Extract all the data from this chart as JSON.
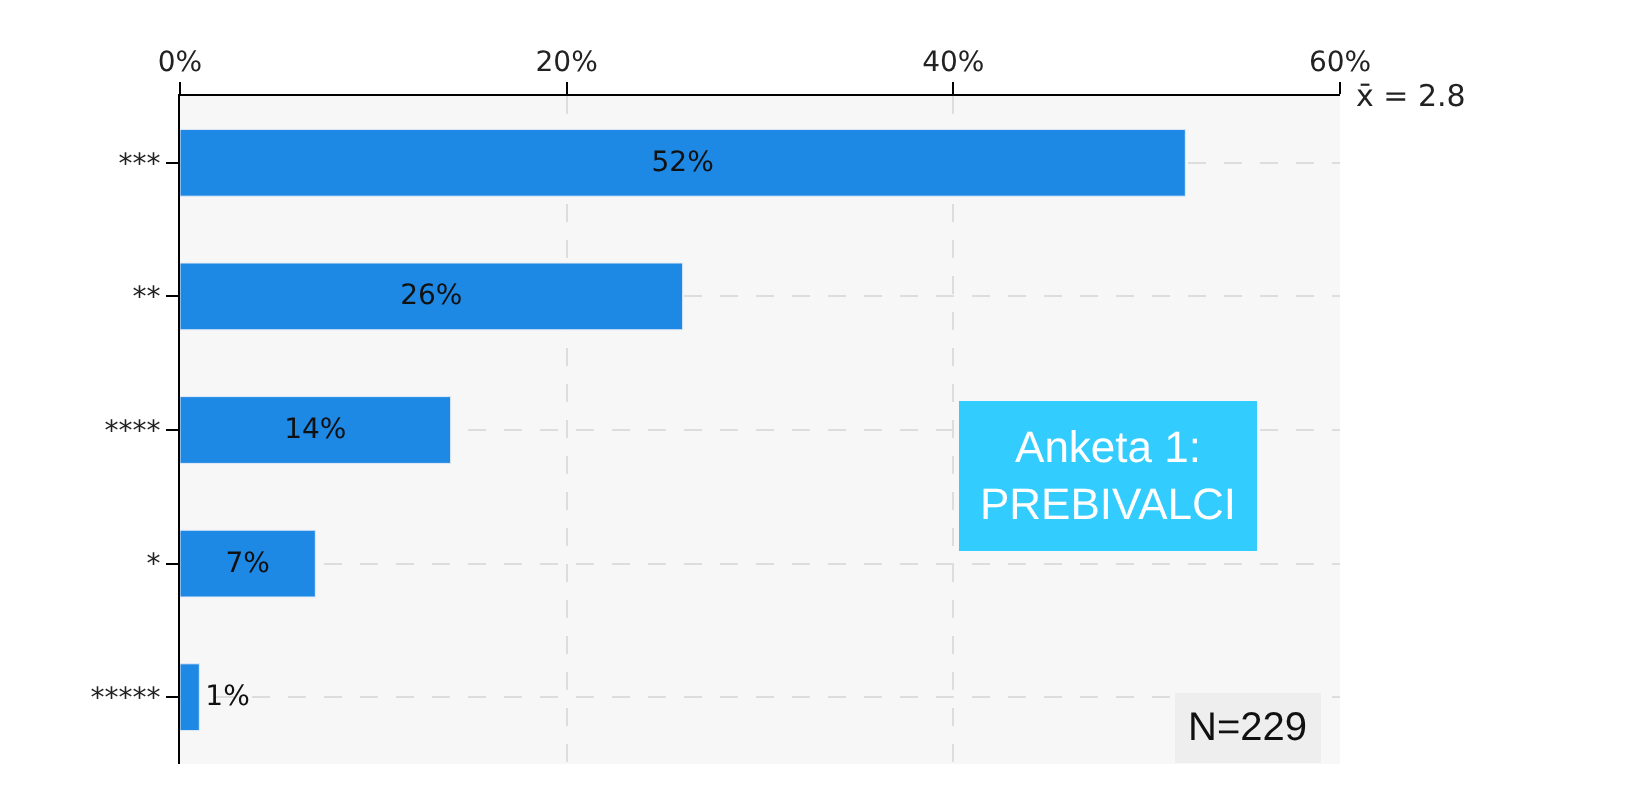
{
  "chart_data": {
    "type": "bar",
    "orientation": "horizontal",
    "categories": [
      "***",
      "**",
      "****",
      "*",
      "*****"
    ],
    "values": [
      52,
      26,
      14,
      7,
      1
    ],
    "value_labels": [
      "52%",
      "26%",
      "14%",
      "7%",
      "1%"
    ],
    "color": "#1e88e5",
    "xlim": [
      0,
      60
    ],
    "xticks": [
      {
        "value": 0,
        "label": "0%"
      },
      {
        "value": 20,
        "label": "20%"
      },
      {
        "value": 40,
        "label": "40%"
      },
      {
        "value": 60,
        "label": "60%"
      }
    ],
    "grid": true,
    "legend": false,
    "annotations": [
      "x̄ = 2.8",
      "Anketa 1:\nPREBIVALCI",
      "N=229"
    ]
  }
}
